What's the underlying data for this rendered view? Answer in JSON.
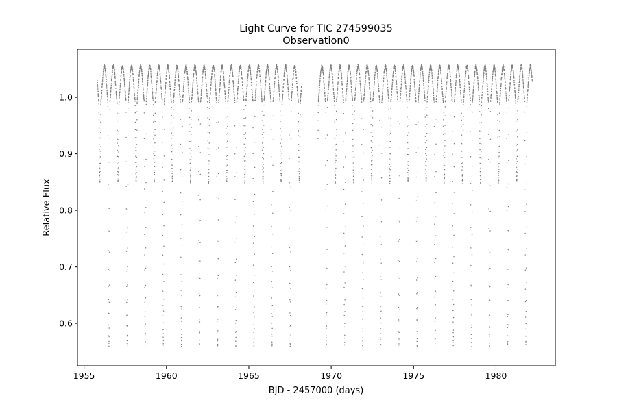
{
  "chart_data": {
    "type": "scatter",
    "title": "Light Curve for TIC 274599035",
    "subtitle": "Observation0",
    "xlabel": "BJD - 2457000 (days)",
    "ylabel": "Relative Flux",
    "xlim": [
      1954.6,
      1983.6
    ],
    "ylim": [
      0.525,
      1.085
    ],
    "xticks": [
      1955,
      1960,
      1965,
      1970,
      1975,
      1980
    ],
    "xtick_labels": [
      "1955",
      "1960",
      "1965",
      "1970",
      "1975",
      "1980"
    ],
    "yticks": [
      0.6,
      0.7,
      0.8,
      0.9,
      1.0
    ],
    "ytick_labels": [
      "0.6",
      "0.7",
      "0.8",
      "0.9",
      "1.0"
    ],
    "grid": false,
    "marker_color": "#808080",
    "series": [
      {
        "time_range": [
          1955.8,
          1982.2
        ],
        "gap": [
          1968.2,
          1969.2
        ],
        "primary_eclipse": {
          "period": 1.1,
          "depth_min": 0.56,
          "duration_days": 0.12
        },
        "secondary_eclipse": {
          "depth_min": 0.85,
          "duration_days": 0.12
        },
        "max_flux": 1.055
      }
    ]
  }
}
